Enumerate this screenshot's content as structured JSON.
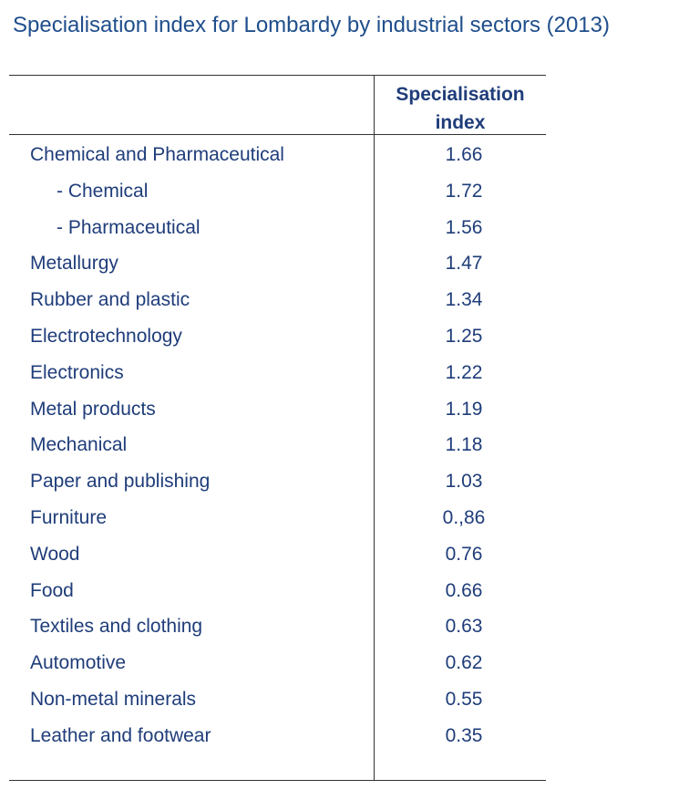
{
  "title": "Specialisation index for Lombardy by industrial sectors (2013)",
  "table": {
    "header": {
      "sector": "",
      "index": "Specialisation index"
    },
    "rows": [
      {
        "label": "Chemical and Pharmaceutical",
        "value": "1.66",
        "sub": false
      },
      {
        "label": "- Chemical",
        "value": "1.72",
        "sub": true
      },
      {
        "label": "- Pharmaceutical",
        "value": "1.56",
        "sub": true
      },
      {
        "label": "Metallurgy",
        "value": "1.47",
        "sub": false
      },
      {
        "label": "Rubber and plastic",
        "value": "1.34",
        "sub": false
      },
      {
        "label": "Electrotechnology",
        "value": "1.25",
        "sub": false
      },
      {
        "label": "Electronics",
        "value": "1.22",
        "sub": false
      },
      {
        "label": "Metal products",
        "value": "1.19",
        "sub": false
      },
      {
        "label": "Mechanical",
        "value": "1.18",
        "sub": false
      },
      {
        "label": "Paper and publishing",
        "value": "1.03",
        "sub": false
      },
      {
        "label": "Furniture",
        "value": "0.,86",
        "sub": false
      },
      {
        "label": "Wood",
        "value": "0.76",
        "sub": false
      },
      {
        "label": "Food",
        "value": "0.66",
        "sub": false
      },
      {
        "label": "Textiles and clothing",
        "value": "0.63",
        "sub": false
      },
      {
        "label": "Automotive",
        "value": "0.62",
        "sub": false
      },
      {
        "label": "Non-metal minerals",
        "value": "0.55",
        "sub": false
      },
      {
        "label": "Leather and footwear",
        "value": "0.35",
        "sub": false
      }
    ]
  }
}
